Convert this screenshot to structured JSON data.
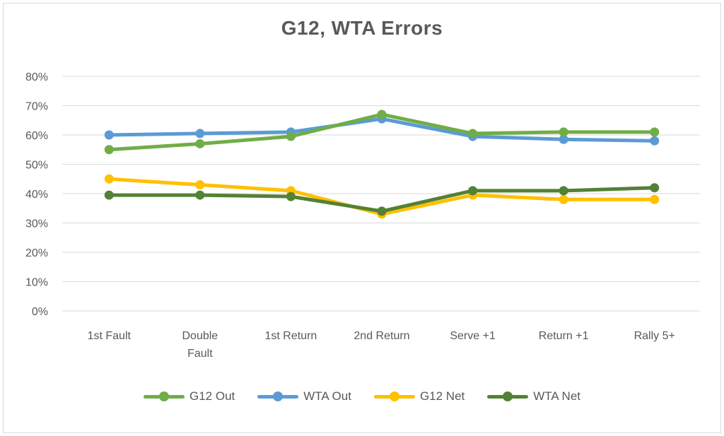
{
  "chart": {
    "title": "G12, WTA Errors",
    "text_color": "#595959",
    "grid_color": "#D9D9D9",
    "border_color": "#D9D9D9",
    "background": "#FFFFFF"
  },
  "chart_data": {
    "type": "line",
    "title": "G12, WTA Errors",
    "categories": [
      "1st Fault",
      "Double Fault",
      "1st Return",
      "2nd Return",
      "Serve +1",
      "Return +1",
      "Rally 5+"
    ],
    "category_display": [
      [
        "1st Fault"
      ],
      [
        "Double",
        "Fault"
      ],
      [
        "1st Return"
      ],
      [
        "2nd Return"
      ],
      [
        "Serve +1"
      ],
      [
        "Return +1"
      ],
      [
        "Rally 5+"
      ]
    ],
    "series": [
      {
        "name": "G12 Out",
        "color": "#70AD47",
        "values": [
          55,
          57,
          59.5,
          67,
          60.5,
          61,
          61
        ]
      },
      {
        "name": "WTA Out",
        "color": "#5B9BD5",
        "values": [
          60,
          60.5,
          61,
          65.5,
          59.5,
          58.5,
          58
        ]
      },
      {
        "name": "G12 Net",
        "color": "#FFC000",
        "values": [
          45,
          43,
          41,
          33,
          39.5,
          38,
          38
        ]
      },
      {
        "name": "WTA Net",
        "color": "#538135",
        "values": [
          39.5,
          39.5,
          39,
          34,
          41,
          41,
          42
        ]
      }
    ],
    "draw_order": [
      1,
      0,
      2,
      3
    ],
    "y_axis": {
      "min": 0,
      "max": 80,
      "step": 10,
      "format": "percent",
      "tick_labels": [
        "0%",
        "10%",
        "20%",
        "30%",
        "40%",
        "50%",
        "60%",
        "70%",
        "80%"
      ]
    },
    "grid": true,
    "markers": true,
    "legend_position": "bottom"
  }
}
